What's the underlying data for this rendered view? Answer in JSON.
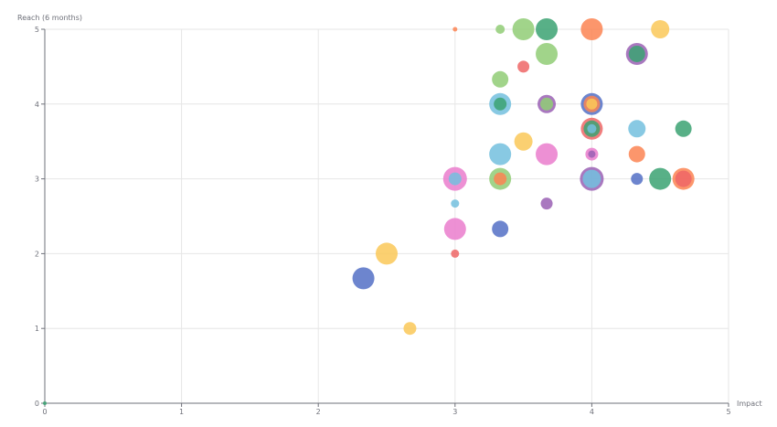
{
  "chart_data": {
    "type": "scatter",
    "title": "",
    "xlabel": "Impact",
    "ylabel": "Reach (6 months)",
    "xlim": [
      0,
      5
    ],
    "ylim": [
      0,
      5
    ],
    "xticks": [
      "0",
      "1",
      "2",
      "3",
      "4",
      "5"
    ],
    "yticks": [
      "0",
      "1",
      "2",
      "3",
      "4",
      "5"
    ],
    "grid": true,
    "legend": "none",
    "colors": {
      "blue": "#5470c6",
      "green": "#91cc75",
      "yellow": "#fac858",
      "red": "#ee6666",
      "cyan": "#73c0de",
      "teal": "#3ba272",
      "orange": "#fc8452",
      "purple": "#9a60b4",
      "pink": "#ea7ccc"
    },
    "points": [
      {
        "x": 0,
        "y": 0,
        "size": 4,
        "color": "teal"
      },
      {
        "x": 2.67,
        "y": 1,
        "size": 14,
        "color": "yellow"
      },
      {
        "x": 2.33,
        "y": 1.67,
        "size": 24,
        "color": "blue"
      },
      {
        "x": 2.5,
        "y": 2,
        "size": 24,
        "color": "yellow"
      },
      {
        "x": 3,
        "y": 2,
        "size": 9,
        "color": "red"
      },
      {
        "x": 3,
        "y": 2.33,
        "size": 24,
        "color": "pink"
      },
      {
        "x": 3.33,
        "y": 2.33,
        "size": 18,
        "color": "blue"
      },
      {
        "x": 3,
        "y": 2.67,
        "size": 9,
        "color": "cyan"
      },
      {
        "x": 3.67,
        "y": 2.67,
        "size": 13,
        "color": "purple"
      },
      {
        "x": 3,
        "y": 3,
        "size": 26,
        "color": "pink"
      },
      {
        "x": 3,
        "y": 3,
        "size": 14,
        "color": "cyan"
      },
      {
        "x": 3.33,
        "y": 3,
        "size": 24,
        "color": "green"
      },
      {
        "x": 3.33,
        "y": 3,
        "size": 14,
        "color": "orange"
      },
      {
        "x": 4,
        "y": 3,
        "size": 26,
        "color": "purple"
      },
      {
        "x": 4,
        "y": 3,
        "size": 20,
        "color": "cyan"
      },
      {
        "x": 4.33,
        "y": 3,
        "size": 13,
        "color": "blue"
      },
      {
        "x": 4.5,
        "y": 3,
        "size": 24,
        "color": "teal"
      },
      {
        "x": 4.67,
        "y": 3,
        "size": 24,
        "color": "orange"
      },
      {
        "x": 4.67,
        "y": 3,
        "size": 18,
        "color": "red"
      },
      {
        "x": 3.33,
        "y": 3.33,
        "size": 24,
        "color": "cyan"
      },
      {
        "x": 3.67,
        "y": 3.33,
        "size": 24,
        "color": "pink"
      },
      {
        "x": 4,
        "y": 3.33,
        "size": 14,
        "color": "pink"
      },
      {
        "x": 4,
        "y": 3.33,
        "size": 8,
        "color": "purple"
      },
      {
        "x": 4.33,
        "y": 3.33,
        "size": 18,
        "color": "orange"
      },
      {
        "x": 3.5,
        "y": 3.5,
        "size": 20,
        "color": "yellow"
      },
      {
        "x": 4,
        "y": 3.67,
        "size": 24,
        "color": "red"
      },
      {
        "x": 4,
        "y": 3.67,
        "size": 18,
        "color": "teal"
      },
      {
        "x": 4,
        "y": 3.67,
        "size": 10,
        "color": "cyan"
      },
      {
        "x": 4.33,
        "y": 3.67,
        "size": 19,
        "color": "cyan"
      },
      {
        "x": 4.67,
        "y": 3.67,
        "size": 18,
        "color": "teal"
      },
      {
        "x": 3.33,
        "y": 4,
        "size": 24,
        "color": "cyan"
      },
      {
        "x": 3.33,
        "y": 4,
        "size": 14,
        "color": "teal"
      },
      {
        "x": 3.67,
        "y": 4,
        "size": 20,
        "color": "purple"
      },
      {
        "x": 3.67,
        "y": 4,
        "size": 14,
        "color": "green"
      },
      {
        "x": 4,
        "y": 4,
        "size": 24,
        "color": "blue"
      },
      {
        "x": 4,
        "y": 4,
        "size": 18,
        "color": "orange"
      },
      {
        "x": 4,
        "y": 4,
        "size": 12,
        "color": "yellow"
      },
      {
        "x": 3.33,
        "y": 4.33,
        "size": 18,
        "color": "green"
      },
      {
        "x": 3.5,
        "y": 4.5,
        "size": 13,
        "color": "red"
      },
      {
        "x": 3.67,
        "y": 4.67,
        "size": 24,
        "color": "green"
      },
      {
        "x": 4.33,
        "y": 4.67,
        "size": 24,
        "color": "purple"
      },
      {
        "x": 4.33,
        "y": 4.67,
        "size": 18,
        "color": "teal"
      },
      {
        "x": 3,
        "y": 5,
        "size": 5,
        "color": "orange"
      },
      {
        "x": 3.33,
        "y": 5,
        "size": 10,
        "color": "green"
      },
      {
        "x": 3.5,
        "y": 5,
        "size": 24,
        "color": "green"
      },
      {
        "x": 3.67,
        "y": 5,
        "size": 24,
        "color": "teal"
      },
      {
        "x": 4,
        "y": 5,
        "size": 24,
        "color": "orange"
      },
      {
        "x": 4.5,
        "y": 5,
        "size": 20,
        "color": "yellow"
      }
    ]
  }
}
